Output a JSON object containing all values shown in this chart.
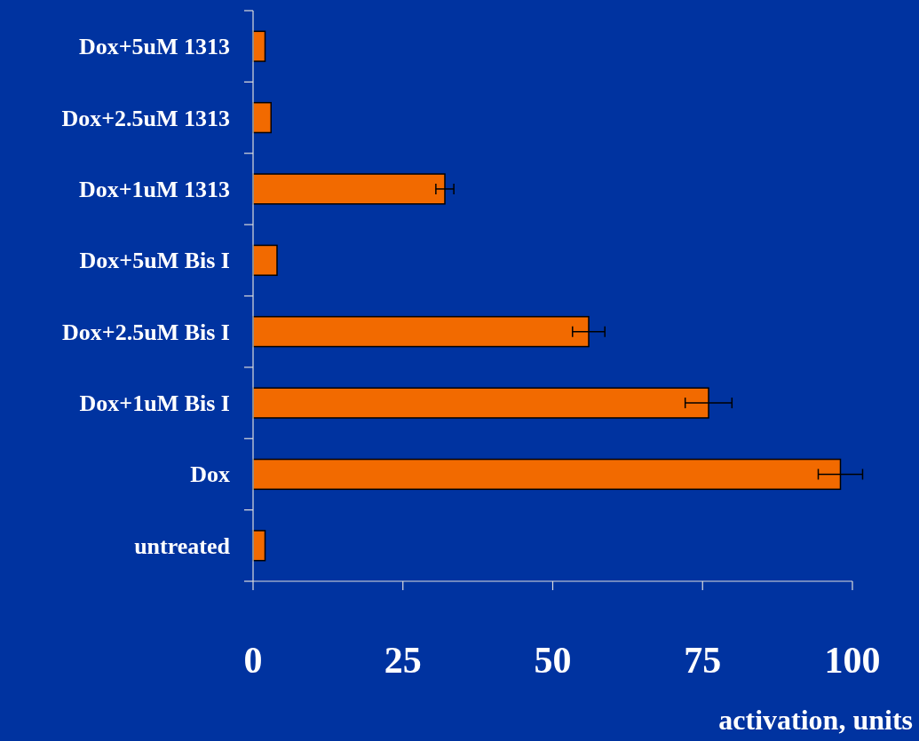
{
  "chart_data": {
    "type": "bar",
    "orientation": "horizontal",
    "xlabel": "activation, units",
    "categories": [
      "Dox+5uM 1313",
      "Dox+2.5uM 1313",
      "Dox+1uM 1313",
      "Dox+5uM Bis I",
      "Dox+2.5uM Bis I",
      "Dox+1uM Bis I",
      "Dox",
      "untreated"
    ],
    "values": [
      2,
      3,
      32,
      4,
      56,
      76,
      98,
      2
    ],
    "errors": [
      null,
      null,
      1.5,
      null,
      2.7,
      3.9,
      3.7,
      null
    ],
    "color": "#f26a00",
    "xlim": [
      0,
      100
    ],
    "xticks": [
      0,
      25,
      50,
      75,
      100
    ],
    "grid": false
  }
}
